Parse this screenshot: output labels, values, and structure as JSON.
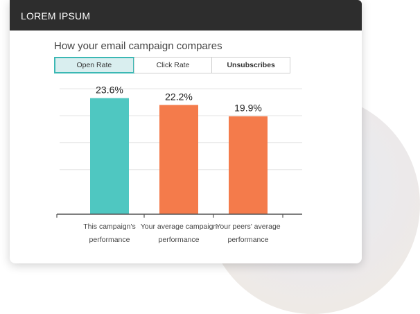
{
  "window": {
    "title": "LOREM IPSUM"
  },
  "chart_heading": "How your email campaign compares",
  "tabs": [
    {
      "label": "Open Rate",
      "active": true
    },
    {
      "label": "Click Rate",
      "active": false
    },
    {
      "label": "Unsubscribes",
      "active": false
    }
  ],
  "colors": {
    "primary_bar": "#4fc7c1",
    "comparison_bar": "#f47b4b",
    "accent": "#3bb8b4"
  },
  "chart_data": {
    "type": "bar",
    "categories": [
      [
        "This campaign's",
        "performance"
      ],
      [
        "Your average campaign",
        "performance"
      ],
      [
        "Your peers' average",
        "performance"
      ]
    ],
    "values": [
      23.6,
      22.2,
      19.9
    ],
    "value_labels": [
      "23.6%",
      "22.2%",
      "19.9%"
    ],
    "bar_colors": [
      "#4fc7c1",
      "#f47b4b",
      "#f47b4b"
    ],
    "ylim": [
      0,
      25.5
    ],
    "grid": true,
    "title": "",
    "xlabel": "",
    "ylabel": ""
  }
}
